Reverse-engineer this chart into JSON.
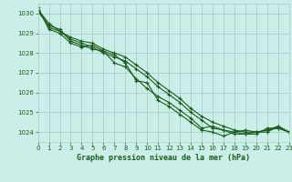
{
  "title": "Graphe pression niveau de la mer (hPa)",
  "bg_color": "#cceee8",
  "grid_color": "#aad4ce",
  "line_color": "#1a5c1a",
  "xlim": [
    0,
    23
  ],
  "ylim": [
    1023.5,
    1030.5
  ],
  "yticks": [
    1024,
    1025,
    1026,
    1027,
    1028,
    1029,
    1030
  ],
  "xticks": [
    0,
    1,
    2,
    3,
    4,
    5,
    6,
    7,
    8,
    9,
    10,
    11,
    12,
    13,
    14,
    15,
    16,
    17,
    18,
    19,
    20,
    21,
    22,
    23
  ],
  "series": [
    [
      1030.2,
      1029.3,
      1029.1,
      1028.7,
      1028.5,
      1028.3,
      1028.0,
      1027.8,
      1027.6,
      1027.2,
      1026.8,
      1026.3,
      1025.9,
      1025.5,
      1025.0,
      1024.6,
      1024.2,
      1024.1,
      1023.9,
      1023.9,
      1024.0,
      1024.1,
      1024.2,
      1024.0
    ],
    [
      1030.1,
      1029.4,
      1029.2,
      1028.6,
      1028.4,
      1028.2,
      1028.1,
      1027.5,
      1027.3,
      1026.7,
      1026.2,
      1025.8,
      1025.5,
      1025.1,
      1024.7,
      1024.2,
      1024.3,
      1024.1,
      1024.0,
      1023.9,
      1023.9,
      1024.2,
      1024.2,
      1024.0
    ],
    [
      1030.3,
      1029.2,
      1029.0,
      1028.5,
      1028.3,
      1028.4,
      1028.1,
      1027.9,
      1027.5,
      1026.6,
      1026.5,
      1025.6,
      1025.3,
      1024.9,
      1024.5,
      1024.1,
      1024.0,
      1023.8,
      1024.0,
      1024.1,
      1024.0,
      1024.0,
      1024.3,
      1024.0
    ],
    [
      1030.2,
      1029.5,
      1029.1,
      1028.8,
      1028.6,
      1028.5,
      1028.2,
      1028.0,
      1027.8,
      1027.4,
      1027.0,
      1026.5,
      1026.1,
      1025.7,
      1025.2,
      1024.8,
      1024.5,
      1024.3,
      1024.1,
      1024.0,
      1024.0,
      1024.1,
      1024.3,
      1024.0
    ]
  ]
}
